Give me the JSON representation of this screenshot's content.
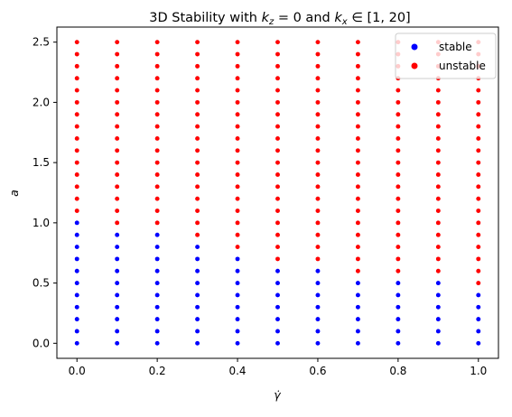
{
  "chart_data": {
    "type": "scatter",
    "title": "3D Stability with k_z = 0 and k_x ∈ [1, 20]",
    "title_parts": {
      "prefix": "3D Stability with ",
      "k": "k",
      "z": "z",
      "eq_zero": " = 0 and ",
      "x": "x",
      "in_range": " ∈ [1, 20]"
    },
    "xlabel": "γ̇",
    "ylabel": "a",
    "xlim": [
      -0.05,
      1.05
    ],
    "ylim": [
      -0.125,
      2.625
    ],
    "xticks": [
      0.0,
      0.2,
      0.4,
      0.6,
      0.8,
      1.0
    ],
    "xtick_labels": [
      "0.0",
      "0.2",
      "0.4",
      "0.6",
      "0.8",
      "1.0"
    ],
    "yticks": [
      0.0,
      0.5,
      1.0,
      1.5,
      2.0,
      2.5
    ],
    "ytick_labels": [
      "0.0",
      "0.5",
      "1.0",
      "1.5",
      "2.0",
      "2.5"
    ],
    "grid": false,
    "legend_position": "upper-right",
    "x_values": [
      0.0,
      0.1,
      0.2,
      0.3,
      0.4,
      0.5,
      0.6,
      0.7,
      0.8,
      0.9,
      1.0
    ],
    "a_values": [
      0.0,
      0.1,
      0.2,
      0.3,
      0.4,
      0.5,
      0.6,
      0.7,
      0.8,
      0.9,
      1.0,
      1.1,
      1.2,
      1.3,
      1.4,
      1.5,
      1.6,
      1.7,
      1.8,
      1.9,
      2.0,
      2.1,
      2.2,
      2.3,
      2.4,
      2.5
    ],
    "stability_threshold_by_x": [
      1.0,
      0.9,
      0.9,
      0.8,
      0.7,
      0.6,
      0.6,
      0.5,
      0.5,
      0.5,
      0.4
    ],
    "series": [
      {
        "name": "stable",
        "color": "#0000ff",
        "rule": "a <= threshold"
      },
      {
        "name": "unstable",
        "color": "#ff0000",
        "rule": "a > threshold"
      }
    ]
  }
}
